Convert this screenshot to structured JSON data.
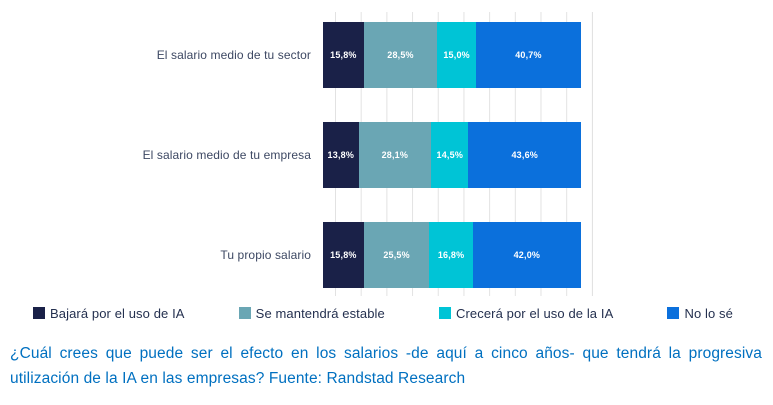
{
  "chart_data": {
    "type": "bar",
    "orientation": "horizontal",
    "stacked_100": true,
    "unit": "%",
    "title": "",
    "xlabel": "",
    "ylabel": "",
    "xlim": [
      0,
      100
    ],
    "gridline_interval_pct": 10,
    "gridline_color": "#e2e2e2",
    "legend_position": "bottom",
    "categories": [
      "El salario medio de tu sector",
      "El salario medio de tu empresa",
      "Tu propio salario"
    ],
    "series": [
      {
        "name": "Bajará por el uso de IA",
        "color": "#1a2148",
        "values": [
          15.8,
          13.8,
          15.8
        ],
        "labels": [
          "15,8%",
          "13,8%",
          "15,8%"
        ]
      },
      {
        "name": "Se mantendrá estable",
        "color": "#6aa6b4",
        "values": [
          28.5,
          28.1,
          25.5
        ],
        "labels": [
          "28,5%",
          "28,1%",
          "25,5%"
        ]
      },
      {
        "name": "Crecerá por el uso de la IA",
        "color": "#00c4d6",
        "values": [
          15.0,
          14.5,
          16.8
        ],
        "labels": [
          "15,0%",
          "14,5%",
          "16,8%"
        ]
      },
      {
        "name": "No lo sé",
        "color": "#0b70dc",
        "values": [
          40.7,
          43.6,
          42.0
        ],
        "labels": [
          "40,7%",
          "43,6%",
          "42,0%"
        ]
      }
    ]
  },
  "caption": {
    "text": "¿Cuál crees que puede ser el efecto en los salarios -de aquí a cinco años- que tendrá la progresiva utilización de la IA en las empresas? Fuente: Randstad Research"
  }
}
